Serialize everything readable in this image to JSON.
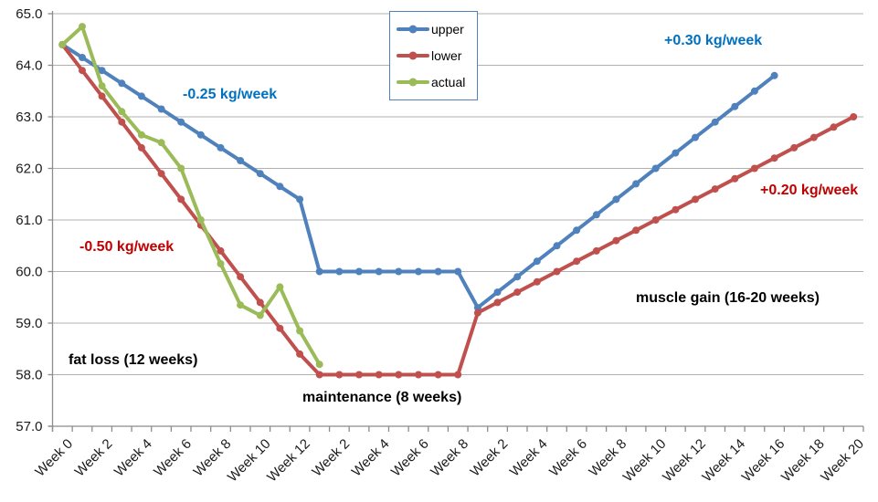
{
  "chart_data": {
    "type": "line",
    "title": "",
    "xlabel": "",
    "ylabel": "",
    "grid": "horizontal",
    "legend_position": "top-center",
    "y_axis": {
      "min": 57.0,
      "max": 65.0,
      "tick_step": 1.0,
      "tick_labels": [
        "65.0",
        "64.0",
        "63.0",
        "62.0",
        "61.0",
        "60.0",
        "59.0",
        "58.0",
        "57.0"
      ]
    },
    "x_axis": {
      "point_count": 41,
      "unit": "week",
      "tick_labels": [
        {
          "i": 0,
          "label": "Week 0"
        },
        {
          "i": 2,
          "label": "Week 2"
        },
        {
          "i": 4,
          "label": "Week 4"
        },
        {
          "i": 6,
          "label": "Week 6"
        },
        {
          "i": 8,
          "label": "Week 8"
        },
        {
          "i": 10,
          "label": "Week 10"
        },
        {
          "i": 12,
          "label": "Week 12"
        },
        {
          "i": 14,
          "label": "Week 2"
        },
        {
          "i": 16,
          "label": "Week 4"
        },
        {
          "i": 18,
          "label": "Week 6"
        },
        {
          "i": 20,
          "label": "Week 8"
        },
        {
          "i": 22,
          "label": "Week 2"
        },
        {
          "i": 24,
          "label": "Week 4"
        },
        {
          "i": 26,
          "label": "Week 6"
        },
        {
          "i": 28,
          "label": "Week 8"
        },
        {
          "i": 30,
          "label": "Week 10"
        },
        {
          "i": 32,
          "label": "Week 12"
        },
        {
          "i": 34,
          "label": "Week 14"
        },
        {
          "i": 36,
          "label": "Week 16"
        },
        {
          "i": 38,
          "label": "Week 18"
        },
        {
          "i": 40,
          "label": "Week 20"
        }
      ]
    },
    "series": [
      {
        "name": "upper",
        "color": "#4F81BD",
        "values": [
          64.4,
          64.15,
          63.9,
          63.65,
          63.4,
          63.15,
          62.9,
          62.65,
          62.4,
          62.15,
          61.9,
          61.65,
          61.4,
          60.0,
          60.0,
          60.0,
          60.0,
          60.0,
          60.0,
          60.0,
          60.0,
          59.3,
          59.6,
          59.9,
          60.2,
          60.5,
          60.8,
          61.1,
          61.4,
          61.7,
          62.0,
          62.3,
          62.6,
          62.9,
          63.2,
          63.5,
          63.8,
          null,
          null,
          null,
          null
        ]
      },
      {
        "name": "lower",
        "color": "#C0504D",
        "values": [
          64.4,
          63.9,
          63.4,
          62.9,
          62.4,
          61.9,
          61.4,
          60.9,
          60.4,
          59.9,
          59.4,
          58.9,
          58.4,
          58.0,
          58.0,
          58.0,
          58.0,
          58.0,
          58.0,
          58.0,
          58.0,
          59.2,
          59.4,
          59.6,
          59.8,
          60.0,
          60.2,
          60.4,
          60.6,
          60.8,
          61.0,
          61.2,
          61.4,
          61.6,
          61.8,
          62.0,
          62.2,
          62.4,
          62.6,
          62.8,
          63.0
        ]
      },
      {
        "name": "actual",
        "color": "#9BBB59",
        "values": [
          64.4,
          64.75,
          63.6,
          63.1,
          62.65,
          62.5,
          62.0,
          61.0,
          60.15,
          59.35,
          59.15,
          59.7,
          58.85,
          58.2,
          null,
          null,
          null,
          null,
          null,
          null,
          null,
          null,
          null,
          null,
          null,
          null,
          null,
          null,
          null,
          null,
          null,
          null,
          null,
          null,
          null,
          null,
          null,
          null,
          null,
          null,
          null
        ]
      }
    ],
    "annotations": [
      {
        "text": "-0.25 kg/week",
        "color": "#0070C0"
      },
      {
        "text": "-0.50 kg/week",
        "color": "#C00000"
      },
      {
        "text": "+0.30 kg/week",
        "color": "#0070C0"
      },
      {
        "text": "+0.20 kg/week",
        "color": "#C00000"
      },
      {
        "text": "fat loss (12 weeks)",
        "color": "#000000"
      },
      {
        "text": "maintenance (8 weeks)",
        "color": "#000000"
      },
      {
        "text": "muscle gain (16-20 weeks)",
        "color": "#000000"
      }
    ]
  }
}
